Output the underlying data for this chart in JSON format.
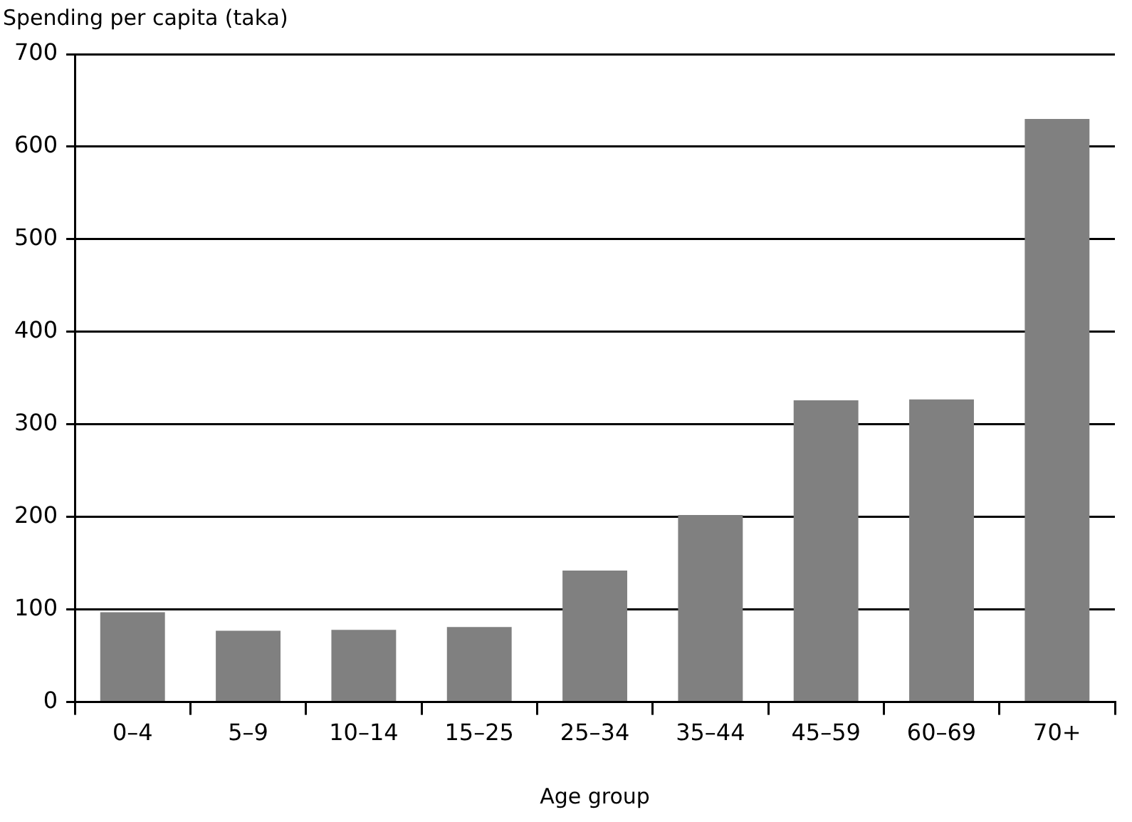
{
  "chart_data": {
    "type": "bar",
    "ylabel": "Spending per capita (taka)",
    "xlabel": "Age group",
    "categories": [
      "0–4",
      "5–9",
      "10–14",
      "15–25",
      "25–34",
      "35–44",
      "45–59",
      "60–69",
      "70+"
    ],
    "values": [
      97,
      77,
      78,
      81,
      142,
      202,
      326,
      327,
      630
    ],
    "color": "#808080",
    "ylim": [
      0,
      700
    ],
    "yticks": [
      0,
      100,
      200,
      300,
      400,
      500,
      600,
      700
    ],
    "grid": "y",
    "legend": false
  }
}
